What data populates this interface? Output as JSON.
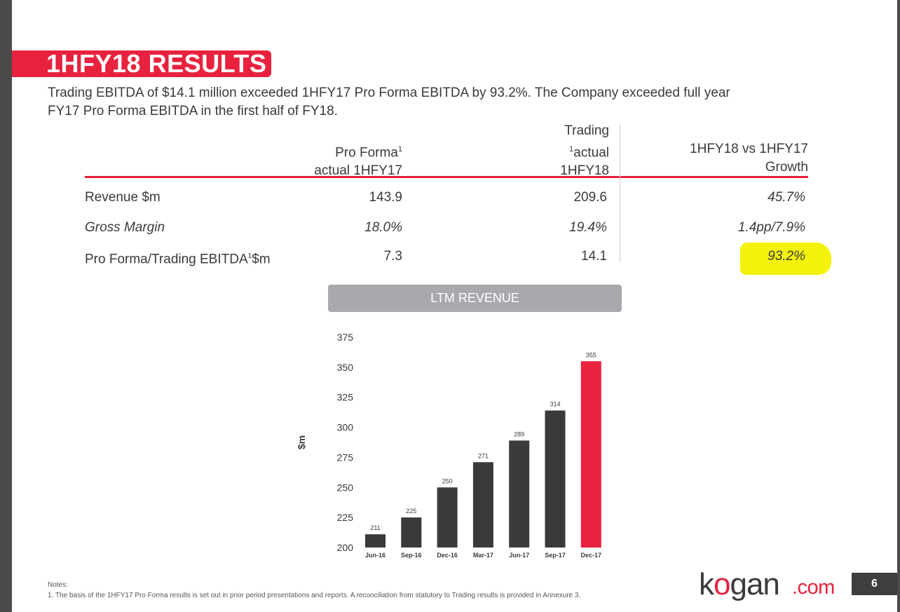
{
  "slide": {
    "title": "1HFY18 RESULTS",
    "intro_line1": "Trading EBITDA of $14.1 million exceeded 1HFY17 Pro Forma EBITDA by 93.2%. The Company exceeded full year",
    "intro_line2": "FY17 Pro Forma EBITDA in the first half of FY18.",
    "page_number": "6",
    "notes_heading": "Notes:",
    "notes_text": "1. The basis of the 1HFY17 Pro Forma results is set out in prior period presentations and reports. A reconciliation from statutory to Trading results is provided in Annexure 3."
  },
  "table": {
    "col1_line1": "Pro Forma",
    "col1_sup": "1",
    "col1_line2": "actual 1HFY17",
    "col2_line1": "Trading",
    "col2_sup": "1",
    "col2_line2": "actual",
    "col2_line3": "1HFY18",
    "col3_line1": "1HFY18 vs 1HFY17",
    "col3_line2": "Growth",
    "rows": [
      {
        "label": "Revenue $m",
        "pro_forma": "143.9",
        "trading": "209.6",
        "growth": "45.7%"
      },
      {
        "label": "Gross Margin",
        "pro_forma": "18.0%",
        "trading": "19.4%",
        "growth": "1.4pp/7.9%"
      },
      {
        "label": "Pro Forma/Trading EBITDA",
        "label_sup": "1",
        "label_suffix": "$m",
        "pro_forma": "7.3",
        "trading": "14.1",
        "growth": "93.2%"
      }
    ],
    "highlight_color": "#f4f20a"
  },
  "chart_header": "LTM REVENUE",
  "chart_data": {
    "type": "bar",
    "title": "LTM REVENUE",
    "categories": [
      "Jun-16",
      "Sep-16",
      "Dec-16",
      "Mar-17",
      "Jun-17",
      "Sep-17",
      "Dec-17"
    ],
    "values": [
      211,
      225,
      250,
      271,
      289,
      314,
      355
    ],
    "value_labels": [
      "211",
      "225",
      "250",
      "271",
      "289",
      "314",
      "355"
    ],
    "ylabel": "$m",
    "xlabel": "",
    "ylim": [
      200,
      375
    ],
    "yticks": [
      200,
      225,
      250,
      275,
      300,
      325,
      350,
      375
    ],
    "grid": false,
    "bar_color": "#3a3a3a",
    "highlight_color": "#e8223e",
    "highlight_category": "Dec-17"
  },
  "logo": {
    "k": "k",
    "o": "o",
    "gan": "gan",
    "dotcom": ".com"
  },
  "colors": {
    "brand_red": "#e8223e",
    "dark_gray": "#3a3a3a",
    "header_gray": "#a7a9ac"
  }
}
